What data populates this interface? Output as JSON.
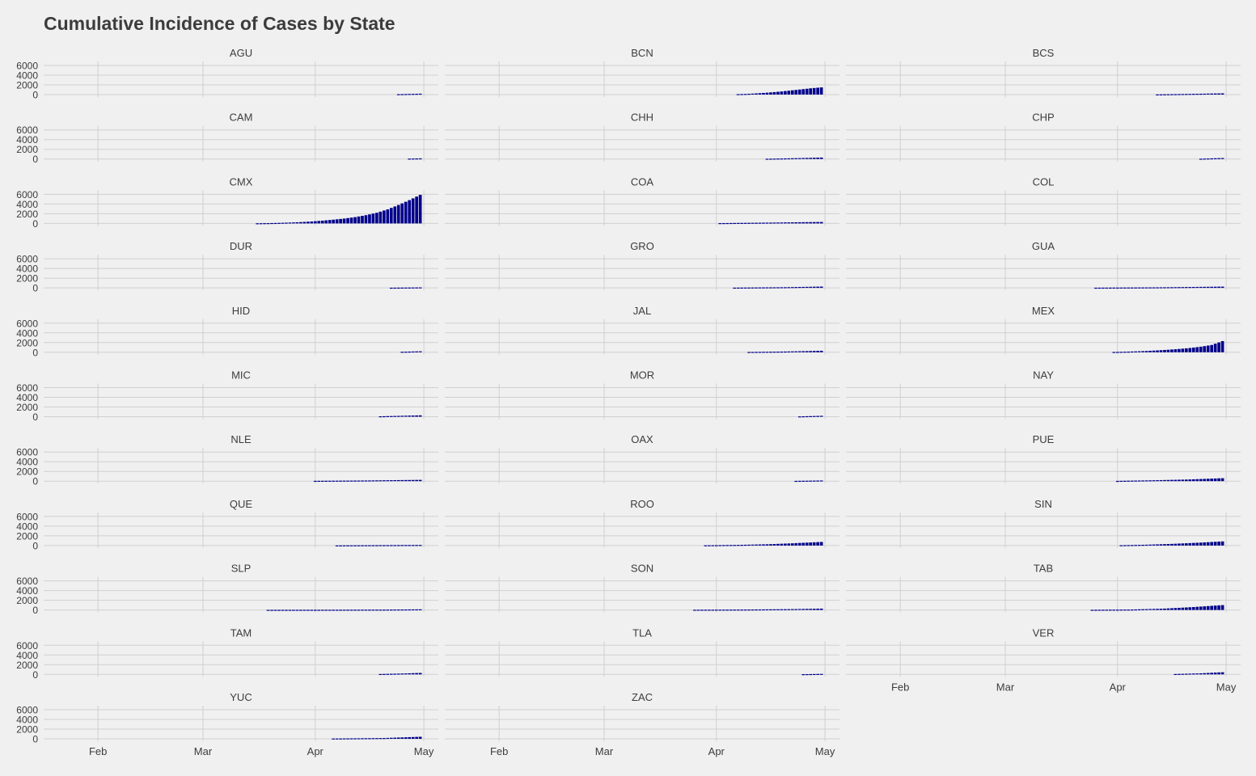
{
  "chart_data": {
    "type": "bar",
    "title": "Cumulative Incidence of Cases by State",
    "facet_layout": {
      "columns": 3,
      "rows": 11
    },
    "x_axis": {
      "type": "date",
      "range": [
        "2020-01-17",
        "2020-05-05"
      ],
      "ticks": [
        {
          "date": "2020-02-01",
          "label": "Feb"
        },
        {
          "date": "2020-03-01",
          "label": "Mar"
        },
        {
          "date": "2020-04-01",
          "label": "Apr"
        },
        {
          "date": "2020-05-01",
          "label": "May"
        }
      ]
    },
    "y_axis": {
      "range": [
        0,
        6000
      ],
      "ticks": [
        0,
        2000,
        4000,
        6000
      ]
    },
    "grid": true,
    "bar_color": "#00008b",
    "panels": [
      {
        "name": "AGU",
        "x": [
          "2020-04-24",
          "2020-04-30"
        ],
        "y": [
          80,
          180
        ]
      },
      {
        "name": "BCN",
        "x": [
          "2020-04-07",
          "2020-04-09",
          "2020-04-11",
          "2020-04-13",
          "2020-04-15",
          "2020-04-17",
          "2020-04-19",
          "2020-04-21",
          "2020-04-23",
          "2020-04-25",
          "2020-04-27",
          "2020-04-30"
        ],
        "y": [
          90,
          130,
          200,
          290,
          390,
          510,
          640,
          800,
          960,
          1120,
          1290,
          1480
        ]
      },
      {
        "name": "BCS",
        "x": [
          "2020-04-12",
          "2020-04-30"
        ],
        "y": [
          30,
          250
        ]
      },
      {
        "name": "CAM",
        "x": [
          "2020-04-27",
          "2020-04-30"
        ],
        "y": [
          80,
          130
        ]
      },
      {
        "name": "CHH",
        "x": [
          "2020-04-15",
          "2020-04-22",
          "2020-04-30"
        ],
        "y": [
          50,
          150,
          300
        ]
      },
      {
        "name": "CHP",
        "x": [
          "2020-04-24",
          "2020-04-30"
        ],
        "y": [
          60,
          200
        ]
      },
      {
        "name": "CMX",
        "x": [
          "2020-03-16",
          "2020-03-19",
          "2020-03-22",
          "2020-03-25",
          "2020-03-28",
          "2020-03-31",
          "2020-04-03",
          "2020-04-06",
          "2020-04-09",
          "2020-04-12",
          "2020-04-15",
          "2020-04-18",
          "2020-04-21",
          "2020-04-24",
          "2020-04-27",
          "2020-04-30"
        ],
        "y": [
          30,
          60,
          110,
          180,
          270,
          400,
          570,
          770,
          1000,
          1300,
          1700,
          2200,
          2900,
          3800,
          4800,
          5900
        ]
      },
      {
        "name": "COA",
        "x": [
          "2020-04-02",
          "2020-04-16",
          "2020-04-30"
        ],
        "y": [
          60,
          170,
          300
        ]
      },
      {
        "name": "COL",
        "x": [],
        "y": []
      },
      {
        "name": "DUR",
        "x": [
          "2020-04-22",
          "2020-04-30"
        ],
        "y": [
          30,
          90
        ]
      },
      {
        "name": "GRO",
        "x": [
          "2020-04-06",
          "2020-04-20",
          "2020-04-30"
        ],
        "y": [
          40,
          130,
          260
        ]
      },
      {
        "name": "GUA",
        "x": [
          "2020-03-26",
          "2020-04-12",
          "2020-04-30"
        ],
        "y": [
          30,
          100,
          250
        ]
      },
      {
        "name": "HID",
        "x": [
          "2020-04-25",
          "2020-04-30"
        ],
        "y": [
          100,
          200
        ]
      },
      {
        "name": "JAL",
        "x": [
          "2020-04-10",
          "2020-04-20",
          "2020-04-30"
        ],
        "y": [
          60,
          150,
          310
        ]
      },
      {
        "name": "MEX",
        "x": [
          "2020-03-31",
          "2020-04-03",
          "2020-04-06",
          "2020-04-09",
          "2020-04-12",
          "2020-04-15",
          "2020-04-18",
          "2020-04-21",
          "2020-04-24",
          "2020-04-27",
          "2020-04-30"
        ],
        "y": [
          60,
          110,
          180,
          270,
          380,
          520,
          680,
          880,
          1150,
          1500,
          2300
        ]
      },
      {
        "name": "MIC",
        "x": [
          "2020-04-19",
          "2020-04-30"
        ],
        "y": [
          80,
          280
        ]
      },
      {
        "name": "MOR",
        "x": [
          "2020-04-24",
          "2020-04-30"
        ],
        "y": [
          60,
          180
        ]
      },
      {
        "name": "NAY",
        "x": [],
        "y": []
      },
      {
        "name": "NLE",
        "x": [
          "2020-04-01",
          "2020-04-15",
          "2020-04-30"
        ],
        "y": [
          60,
          130,
          260
        ]
      },
      {
        "name": "OAX",
        "x": [
          "2020-04-23",
          "2020-04-30"
        ],
        "y": [
          50,
          130
        ]
      },
      {
        "name": "PUE",
        "x": [
          "2020-04-01",
          "2020-04-10",
          "2020-04-20",
          "2020-04-30"
        ],
        "y": [
          50,
          160,
          320,
          600
        ]
      },
      {
        "name": "QUE",
        "x": [
          "2020-04-07",
          "2020-04-30"
        ],
        "y": [
          30,
          120
        ]
      },
      {
        "name": "ROO",
        "x": [
          "2020-03-29",
          "2020-04-07",
          "2020-04-15",
          "2020-04-22",
          "2020-04-30"
        ],
        "y": [
          50,
          130,
          260,
          460,
          740
        ]
      },
      {
        "name": "SIN",
        "x": [
          "2020-04-02",
          "2020-04-09",
          "2020-04-16",
          "2020-04-23",
          "2020-04-30"
        ],
        "y": [
          60,
          170,
          340,
          570,
          850
        ]
      },
      {
        "name": "SLP",
        "x": [
          "2020-03-19",
          "2020-04-05",
          "2020-04-20",
          "2020-04-30"
        ],
        "y": [
          20,
          40,
          70,
          130
        ]
      },
      {
        "name": "SON",
        "x": [
          "2020-03-26",
          "2020-04-10",
          "2020-04-22",
          "2020-04-30"
        ],
        "y": [
          40,
          90,
          170,
          280
        ]
      },
      {
        "name": "TAB",
        "x": [
          "2020-03-25",
          "2020-04-05",
          "2020-04-14",
          "2020-04-22",
          "2020-04-30"
        ],
        "y": [
          30,
          90,
          280,
          600,
          1000
        ]
      },
      {
        "name": "TAM",
        "x": [
          "2020-04-19",
          "2020-04-25",
          "2020-04-30"
        ],
        "y": [
          80,
          180,
          300
        ]
      },
      {
        "name": "TLA",
        "x": [
          "2020-04-25",
          "2020-04-30"
        ],
        "y": [
          40,
          100
        ]
      },
      {
        "name": "VER",
        "x": [
          "2020-04-17",
          "2020-04-24",
          "2020-04-30"
        ],
        "y": [
          80,
          220,
          440
        ]
      },
      {
        "name": "YUC",
        "x": [
          "2020-04-06",
          "2020-04-20",
          "2020-04-30"
        ],
        "y": [
          60,
          160,
          420
        ]
      },
      {
        "name": "ZAC",
        "x": [],
        "y": []
      }
    ]
  }
}
